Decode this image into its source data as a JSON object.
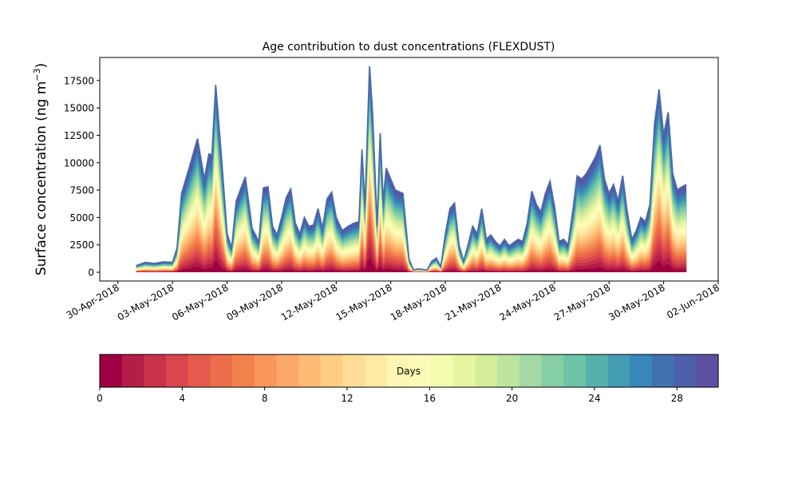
{
  "chart_data": {
    "type": "area",
    "title": "Age contribution to dust concentrations (FLEXDUST)",
    "ylabel": "Surface concentration (ng m",
    "ylabel_superscript": "−3",
    "ylabel_close": ")",
    "xlim": [
      "2018-04-29",
      "2018-06-02"
    ],
    "ylim": [
      -800,
      19600
    ],
    "yticks": [
      0,
      2500,
      5000,
      7500,
      10000,
      12500,
      15000,
      17500
    ],
    "xtick_labels": [
      "30-Apr-2018",
      "03-May-2018",
      "06-May-2018",
      "09-May-2018",
      "12-May-2018",
      "15-May-2018",
      "18-May-2018",
      "21-May-2018",
      "24-May-2018",
      "27-May-2018",
      "30-May-2018",
      "02-Jun-2018"
    ],
    "xtick_dates": [
      "2018-04-30",
      "2018-05-03",
      "2018-05-06",
      "2018-05-09",
      "2018-05-12",
      "2018-05-15",
      "2018-05-18",
      "2018-05-21",
      "2018-05-24",
      "2018-05-27",
      "2018-05-30",
      "2018-06-02"
    ],
    "total": [
      [
        "2018-05-01 00:00",
        600
      ],
      [
        "2018-05-01 12:00",
        900
      ],
      [
        "2018-05-02 00:00",
        800
      ],
      [
        "2018-05-02 12:00",
        950
      ],
      [
        "2018-05-03 00:00",
        900
      ],
      [
        "2018-05-03 06:00",
        2200
      ],
      [
        "2018-05-03 12:00",
        7200
      ],
      [
        "2018-05-04 00:00",
        10000
      ],
      [
        "2018-05-04 09:00",
        12200
      ],
      [
        "2018-05-04 18:00",
        8500
      ],
      [
        "2018-05-05 00:00",
        10800
      ],
      [
        "2018-05-05 04:00",
        10700
      ],
      [
        "2018-05-05 09:00",
        17100
      ],
      [
        "2018-05-05 16:00",
        11000
      ],
      [
        "2018-05-06 00:00",
        3500
      ],
      [
        "2018-05-06 06:00",
        2200
      ],
      [
        "2018-05-06 12:00",
        6500
      ],
      [
        "2018-05-07 00:00",
        8700
      ],
      [
        "2018-05-07 09:00",
        4000
      ],
      [
        "2018-05-07 18:00",
        2800
      ],
      [
        "2018-05-08 00:00",
        7700
      ],
      [
        "2018-05-08 06:00",
        7800
      ],
      [
        "2018-05-08 12:00",
        4200
      ],
      [
        "2018-05-08 18:00",
        3400
      ],
      [
        "2018-05-09 00:00",
        5000
      ],
      [
        "2018-05-09 06:00",
        6800
      ],
      [
        "2018-05-09 12:00",
        7600
      ],
      [
        "2018-05-09 18:00",
        4500
      ],
      [
        "2018-05-10 00:00",
        3500
      ],
      [
        "2018-05-10 06:00",
        5000
      ],
      [
        "2018-05-10 12:00",
        4200
      ],
      [
        "2018-05-10 18:00",
        4300
      ],
      [
        "2018-05-11 00:00",
        5800
      ],
      [
        "2018-05-11 06:00",
        4000
      ],
      [
        "2018-05-11 12:00",
        6700
      ],
      [
        "2018-05-11 18:00",
        7300
      ],
      [
        "2018-05-12 00:00",
        5000
      ],
      [
        "2018-05-12 08:00",
        3800
      ],
      [
        "2018-05-12 16:00",
        4200
      ],
      [
        "2018-05-13 00:00",
        4500
      ],
      [
        "2018-05-13 06:00",
        4600
      ],
      [
        "2018-05-13 10:00",
        11200
      ],
      [
        "2018-05-13 14:00",
        6000
      ],
      [
        "2018-05-13 20:00",
        18800
      ],
      [
        "2018-05-14 00:00",
        14500
      ],
      [
        "2018-05-14 06:00",
        4200
      ],
      [
        "2018-05-14 10:00",
        12700
      ],
      [
        "2018-05-14 14:00",
        6500
      ],
      [
        "2018-05-14 18:00",
        9500
      ],
      [
        "2018-05-15 06:00",
        7500
      ],
      [
        "2018-05-15 16:00",
        7200
      ],
      [
        "2018-05-16 00:00",
        1200
      ],
      [
        "2018-05-16 06:00",
        200
      ],
      [
        "2018-05-16 12:00",
        300
      ],
      [
        "2018-05-17 00:00",
        200
      ],
      [
        "2018-05-17 06:00",
        1000
      ],
      [
        "2018-05-17 12:00",
        1300
      ],
      [
        "2018-05-17 18:00",
        500
      ],
      [
        "2018-05-18 00:00",
        3500
      ],
      [
        "2018-05-18 06:00",
        5800
      ],
      [
        "2018-05-18 12:00",
        6300
      ],
      [
        "2018-05-18 18:00",
        2500
      ],
      [
        "2018-05-19 00:00",
        1000
      ],
      [
        "2018-05-19 06:00",
        2500
      ],
      [
        "2018-05-19 12:00",
        4200
      ],
      [
        "2018-05-19 18:00",
        3500
      ],
      [
        "2018-05-20 00:00",
        5800
      ],
      [
        "2018-05-20 06:00",
        3000
      ],
      [
        "2018-05-20 12:00",
        3400
      ],
      [
        "2018-05-20 18:00",
        2800
      ],
      [
        "2018-05-21 00:00",
        2400
      ],
      [
        "2018-05-21 06:00",
        3000
      ],
      [
        "2018-05-21 12:00",
        2400
      ],
      [
        "2018-05-22 00:00",
        3000
      ],
      [
        "2018-05-22 06:00",
        2800
      ],
      [
        "2018-05-22 12:00",
        4500
      ],
      [
        "2018-05-22 18:00",
        7400
      ],
      [
        "2018-05-23 00:00",
        6200
      ],
      [
        "2018-05-23 06:00",
        5500
      ],
      [
        "2018-05-23 12:00",
        7200
      ],
      [
        "2018-05-23 18:00",
        8300
      ],
      [
        "2018-05-24 00:00",
        6000
      ],
      [
        "2018-05-24 06:00",
        2800
      ],
      [
        "2018-05-24 12:00",
        3000
      ],
      [
        "2018-05-24 18:00",
        2500
      ],
      [
        "2018-05-25 00:00",
        5500
      ],
      [
        "2018-05-25 06:00",
        8800
      ],
      [
        "2018-05-25 12:00",
        8500
      ],
      [
        "2018-05-25 18:00",
        9000
      ],
      [
        "2018-05-26 06:00",
        10500
      ],
      [
        "2018-05-26 12:00",
        11600
      ],
      [
        "2018-05-26 18:00",
        8500
      ],
      [
        "2018-05-27 00:00",
        7200
      ],
      [
        "2018-05-27 06:00",
        8000
      ],
      [
        "2018-05-27 12:00",
        6500
      ],
      [
        "2018-05-27 18:00",
        8800
      ],
      [
        "2018-05-28 00:00",
        5500
      ],
      [
        "2018-05-28 06:00",
        3000
      ],
      [
        "2018-05-28 12:00",
        3800
      ],
      [
        "2018-05-28 18:00",
        5000
      ],
      [
        "2018-05-29 00:00",
        4600
      ],
      [
        "2018-05-29 06:00",
        6200
      ],
      [
        "2018-05-29 12:00",
        13500
      ],
      [
        "2018-05-29 18:00",
        16700
      ],
      [
        "2018-05-30 00:00",
        12500
      ],
      [
        "2018-05-30 06:00",
        14600
      ],
      [
        "2018-05-30 12:00",
        9000
      ],
      [
        "2018-05-30 18:00",
        7500
      ],
      [
        "2018-05-31 00:00",
        7800
      ],
      [
        "2018-05-31 06:00",
        8000
      ]
    ],
    "total_note": "",
    "colorbar": {
      "label": "Days",
      "ticks": [
        0,
        4,
        8,
        12,
        16,
        20,
        24,
        28
      ],
      "range": [
        0,
        30
      ],
      "colors": [
        "#9e0142",
        "#b41d47",
        "#c8324a",
        "#da464d",
        "#e55a4c",
        "#ec6d4a",
        "#f3814c",
        "#f8955a",
        "#fba96a",
        "#fdbb76",
        "#fdcd84",
        "#fede96",
        "#feeaa3",
        "#fff5b3",
        "#fcfcb8",
        "#f4faaf",
        "#e7f5a0",
        "#d4ed9b",
        "#bde5a0",
        "#a2d9a4",
        "#86cea4",
        "#6cc3a5",
        "#56b0ac",
        "#449bb4",
        "#3986bb",
        "#4271b2",
        "#4d5faa",
        "#5e4fa2"
      ]
    }
  }
}
